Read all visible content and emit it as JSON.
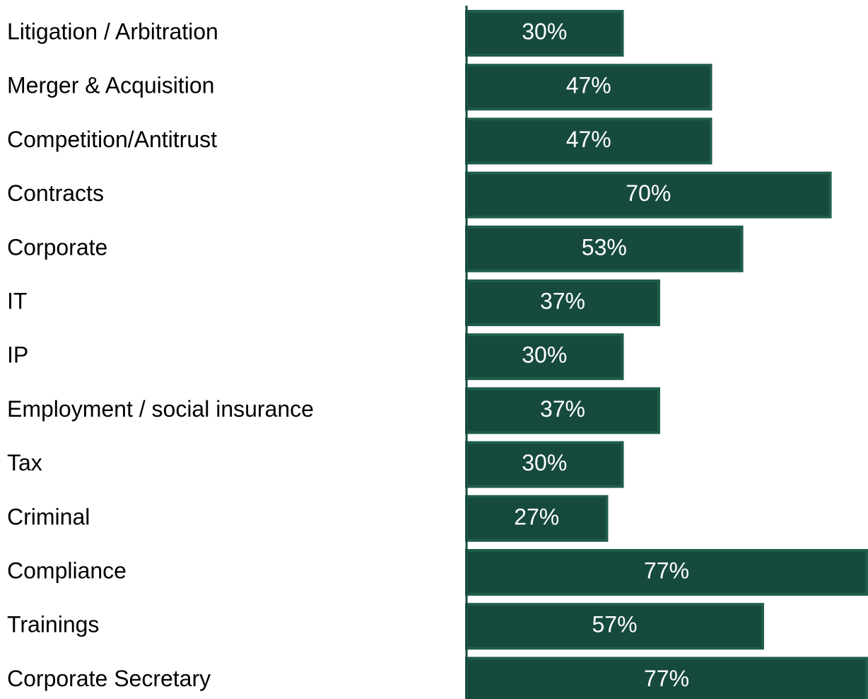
{
  "chart_data": {
    "type": "bar",
    "orientation": "horizontal",
    "categories": [
      "Litigation / Arbitration",
      "Merger & Acquisition",
      "Competition/Antitrust",
      "Contracts",
      "Corporate",
      "IT",
      "IP",
      "Employment / social insurance",
      "Tax",
      "Criminal",
      "Compliance",
      "Trainings",
      "Corporate Secretary"
    ],
    "values": [
      30,
      47,
      47,
      70,
      53,
      37,
      30,
      37,
      30,
      27,
      77,
      57,
      77
    ],
    "value_labels": [
      "30%",
      "47%",
      "47%",
      "70%",
      "53%",
      "37%",
      "30%",
      "37%",
      "30%",
      "27%",
      "77%",
      "57%",
      "77%"
    ],
    "unit": "%",
    "title": "",
    "xlabel": "",
    "ylabel": "",
    "xlim": [
      0,
      77
    ],
    "grid": false,
    "legend": "none",
    "bar_color": "#174a3e",
    "bar_border_color": "#1f5d4c",
    "axis_color": "#174a3e",
    "value_label_color": "#ffffff"
  }
}
